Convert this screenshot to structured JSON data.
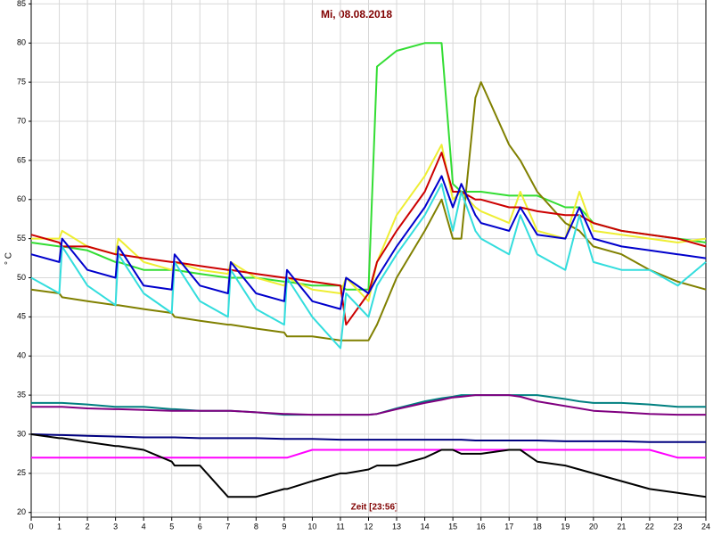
{
  "chart_data": {
    "type": "line",
    "title": "Mi, 08.08.2018",
    "x_label": "Zeit [23:56]",
    "y_label": "° C",
    "x": [
      0,
      1,
      1.1,
      2,
      3,
      3.1,
      4,
      5,
      5.1,
      6,
      7,
      7.1,
      8,
      9,
      9.1,
      10,
      11,
      11.2,
      12,
      12.3,
      13,
      14,
      14.6,
      15,
      15.3,
      15.8,
      16,
      17,
      17.4,
      18,
      19,
      19.5,
      20,
      21,
      22,
      23,
      24
    ],
    "xlim": [
      0,
      24
    ],
    "xticks": [
      0,
      1,
      2,
      3,
      4,
      5,
      6,
      7,
      8,
      9,
      10,
      11,
      12,
      13,
      14,
      15,
      16,
      17,
      18,
      19,
      20,
      21,
      22,
      23,
      24
    ],
    "ylim": [
      19.4,
      85.5
    ],
    "yticks": [
      20,
      25,
      30,
      35,
      40,
      45,
      50,
      55,
      60,
      65,
      70,
      75,
      80,
      85
    ],
    "grid": true,
    "series": [
      {
        "color": "#33dd33",
        "values": [
          54.5,
          54,
          54,
          53.5,
          52,
          52,
          51,
          51,
          51,
          50.5,
          50,
          50,
          50,
          49.5,
          49.5,
          49,
          49,
          48.5,
          48.5,
          77,
          79,
          80,
          80,
          62,
          61,
          61,
          61,
          60.5,
          60.5,
          60.5,
          59,
          59,
          57,
          56,
          55.5,
          55,
          54.5
        ]
      },
      {
        "color": "#eeee33",
        "values": [
          55,
          55,
          56,
          54,
          53,
          55,
          52,
          51,
          52,
          51,
          50.5,
          52,
          50,
          49,
          50,
          48.5,
          48,
          50,
          47,
          52,
          58,
          63,
          67,
          60,
          61,
          59,
          58.5,
          57,
          61,
          56,
          55,
          61,
          56,
          55.5,
          55,
          54.5,
          55
        ]
      },
      {
        "color": "#808000",
        "values": [
          48.5,
          48,
          47.5,
          47,
          46.5,
          46.5,
          46,
          45.5,
          45,
          44.5,
          44,
          44,
          43.5,
          43,
          42.5,
          42.5,
          42,
          42,
          42,
          44,
          50,
          56,
          60,
          55,
          55,
          73,
          75,
          67,
          65,
          61,
          57,
          56,
          54,
          53,
          51,
          49.5,
          48.5
        ]
      },
      {
        "color": "#cc0000",
        "values": [
          55.5,
          54.5,
          54,
          54,
          53,
          53,
          52.5,
          52,
          52,
          51.5,
          51,
          51,
          50.5,
          50,
          50,
          49.5,
          49,
          44,
          48,
          52,
          56,
          61,
          66,
          61,
          61,
          60,
          60,
          59,
          59,
          58.5,
          58,
          58,
          57,
          56,
          55.5,
          55,
          54
        ]
      },
      {
        "color": "#33dddd",
        "values": [
          50,
          48,
          54,
          49,
          46.5,
          53,
          48,
          45.5,
          52,
          47,
          45,
          51,
          46,
          44,
          50,
          45,
          41,
          48,
          45,
          49,
          53,
          58,
          62,
          56,
          61,
          56,
          55,
          53,
          58,
          53,
          51,
          58,
          52,
          51,
          51,
          49,
          52
        ]
      },
      {
        "color": "#0000cc",
        "values": [
          53,
          52,
          55,
          51,
          50,
          54,
          49,
          48.5,
          53,
          49,
          48,
          52,
          48,
          47,
          51,
          47,
          46,
          50,
          48,
          50,
          54,
          59,
          63,
          59,
          62,
          58,
          57,
          56,
          59,
          55.5,
          55,
          59,
          55,
          54,
          53.5,
          53,
          52.5
        ]
      },
      {
        "color": "#008080",
        "values": [
          34,
          34,
          34,
          33.8,
          33.5,
          33.5,
          33.5,
          33.2,
          33.2,
          33,
          33,
          33,
          32.8,
          32.5,
          32.5,
          32.5,
          32.5,
          32.5,
          32.5,
          32.6,
          33.3,
          34.2,
          34.6,
          34.8,
          35,
          35,
          35,
          35,
          35,
          35,
          34.5,
          34.2,
          34,
          34,
          33.8,
          33.5,
          33.5
        ]
      },
      {
        "color": "#800080",
        "values": [
          33.5,
          33.5,
          33.5,
          33.3,
          33.2,
          33.2,
          33.1,
          33,
          33,
          33,
          33,
          33,
          32.8,
          32.6,
          32.6,
          32.5,
          32.5,
          32.5,
          32.5,
          32.6,
          33.2,
          34,
          34.4,
          34.7,
          34.8,
          35,
          35,
          35,
          34.8,
          34.2,
          33.6,
          33.3,
          33,
          32.8,
          32.6,
          32.5,
          32.5
        ]
      },
      {
        "color": "#000080",
        "values": [
          30,
          29.9,
          29.9,
          29.8,
          29.7,
          29.7,
          29.6,
          29.6,
          29.6,
          29.5,
          29.5,
          29.5,
          29.5,
          29.4,
          29.4,
          29.4,
          29.3,
          29.3,
          29.3,
          29.3,
          29.3,
          29.3,
          29.3,
          29.3,
          29.3,
          29.2,
          29.2,
          29.2,
          29.2,
          29.2,
          29.1,
          29.1,
          29.1,
          29.1,
          29,
          29,
          29
        ]
      },
      {
        "color": "#ff00ff",
        "values": [
          27,
          27,
          27,
          27,
          27,
          27,
          27,
          27,
          27,
          27,
          27,
          27,
          27,
          27,
          27,
          28,
          28,
          28,
          28,
          28,
          28,
          28,
          28,
          28,
          28,
          28,
          28,
          28,
          28,
          28,
          28,
          28,
          28,
          28,
          28,
          27,
          27
        ]
      },
      {
        "color": "#000000",
        "values": [
          30,
          29.5,
          29.5,
          29,
          28.5,
          28.5,
          28,
          26.5,
          26,
          26,
          22,
          22,
          22,
          23,
          23,
          24,
          25,
          25,
          25.5,
          26,
          26,
          27,
          28,
          28,
          27.5,
          27.5,
          27.5,
          28,
          28,
          26.5,
          26,
          25.5,
          25,
          24,
          23,
          22.5,
          22
        ]
      }
    ]
  }
}
